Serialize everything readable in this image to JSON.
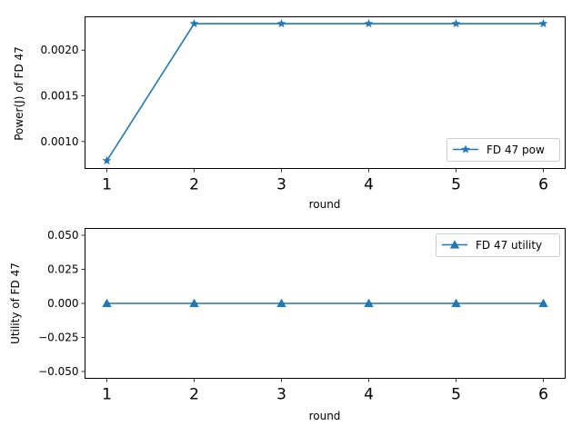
{
  "chart_data": [
    {
      "type": "line",
      "x": [
        1,
        2,
        3,
        4,
        5,
        6
      ],
      "xlim": [
        0.75,
        6.25
      ],
      "xticks": [
        "1",
        "2",
        "3",
        "4",
        "5",
        "6"
      ],
      "xlabel": "round",
      "ylabel": "Power(J) of FD 47",
      "ylim": [
        0.000705,
        0.002365
      ],
      "yticks": [
        "0.0010",
        "0.0015",
        "0.0020"
      ],
      "series": [
        {
          "name": "FD 47 pow",
          "values": [
            0.00079,
            0.00229,
            0.00229,
            0.00229,
            0.00229,
            0.00229
          ],
          "marker": "star",
          "color": "#1f77b4"
        }
      ],
      "legend": "lower-right",
      "grid": false
    },
    {
      "type": "line",
      "x": [
        1,
        2,
        3,
        4,
        5,
        6
      ],
      "xlim": [
        0.75,
        6.25
      ],
      "xticks": [
        "1",
        "2",
        "3",
        "4",
        "5",
        "6"
      ],
      "xlabel": "round",
      "ylabel": "Utility of FD 47",
      "ylim": [
        -0.055,
        0.055
      ],
      "yticks": [
        "−0.050",
        "−0.025",
        "0.000",
        "0.025",
        "0.050"
      ],
      "series": [
        {
          "name": "FD 47 utility",
          "values": [
            0,
            0,
            0,
            0,
            0,
            0
          ],
          "marker": "triangle",
          "color": "#1f77b4"
        }
      ],
      "legend": "upper-right",
      "grid": false
    }
  ]
}
